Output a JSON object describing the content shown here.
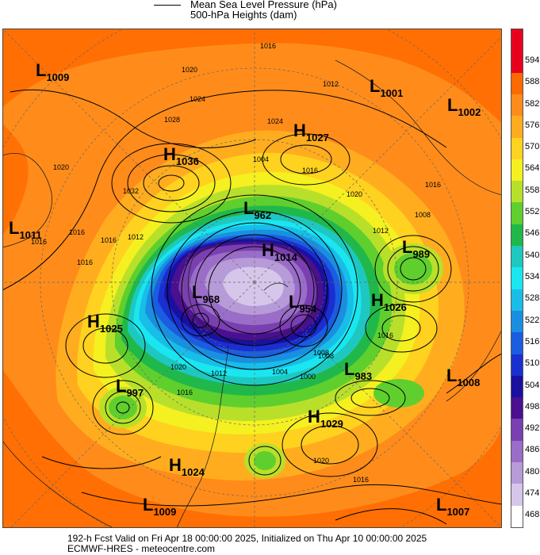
{
  "legend": {
    "mslp_label": "Mean Sea Level Pressure (hPa)",
    "heights_label": "500-hPa Heights (dam)"
  },
  "colorbar": {
    "labels": [
      "594",
      "588",
      "582",
      "576",
      "570",
      "564",
      "558",
      "552",
      "546",
      "540",
      "534",
      "528",
      "522",
      "516",
      "510",
      "504",
      "498",
      "492",
      "486",
      "480",
      "474",
      "468"
    ],
    "colors": [
      "#e8001c",
      "#ff6a00",
      "#ff8c1a",
      "#ffad1f",
      "#ffd21f",
      "#f5f020",
      "#b8e02a",
      "#5fcf2e",
      "#20b84a",
      "#1ec8c0",
      "#1ae6f0",
      "#18bde8",
      "#1a8fe0",
      "#1a5de0",
      "#1a2fd0",
      "#1a10a0",
      "#4a1090",
      "#7a3fb0",
      "#9a6dc8",
      "#b79ad8",
      "#d6c6ea",
      "#ffffff"
    ],
    "top_color": "#e8001c"
  },
  "pressure_centers": [
    {
      "type": "L",
      "value": "1009"
    },
    {
      "type": "L",
      "value": "1001"
    },
    {
      "type": "L",
      "value": "1002"
    },
    {
      "type": "H",
      "value": "1027"
    },
    {
      "type": "H",
      "value": "1036"
    },
    {
      "type": "L",
      "value": "1011"
    },
    {
      "type": "L",
      "value": "962"
    },
    {
      "type": "H",
      "value": "1014"
    },
    {
      "type": "L",
      "value": "989"
    },
    {
      "type": "L",
      "value": "968"
    },
    {
      "type": "L",
      "value": "954"
    },
    {
      "type": "H",
      "value": "1026"
    },
    {
      "type": "H",
      "value": "1025"
    },
    {
      "type": "L",
      "value": "983"
    },
    {
      "type": "L",
      "value": "1008"
    },
    {
      "type": "L",
      "value": "997"
    },
    {
      "type": "H",
      "value": "1029"
    },
    {
      "type": "H",
      "value": "1024"
    },
    {
      "type": "L",
      "value": "1009"
    },
    {
      "type": "L",
      "value": "1007"
    }
  ],
  "isobar_labels": [
    "1016",
    "1020",
    "1024",
    "1028",
    "1032",
    "1016",
    "1012",
    "1008",
    "1004",
    "1024",
    "1016",
    "1020",
    "1016",
    "1012",
    "1008",
    "1016",
    "1004",
    "1008",
    "1020",
    "1016",
    "1012",
    "1016",
    "1020",
    "1016",
    "1012",
    "1016",
    "1000",
    "1020",
    "1016"
  ],
  "footer": {
    "line1": "192-h Fcst Valid on Fri Apr 18 00:00:00 2025, Initialized on Thu Apr 10 00:00:00 2025",
    "line2": "ECMWF-HRES  - meteocentre.com"
  }
}
